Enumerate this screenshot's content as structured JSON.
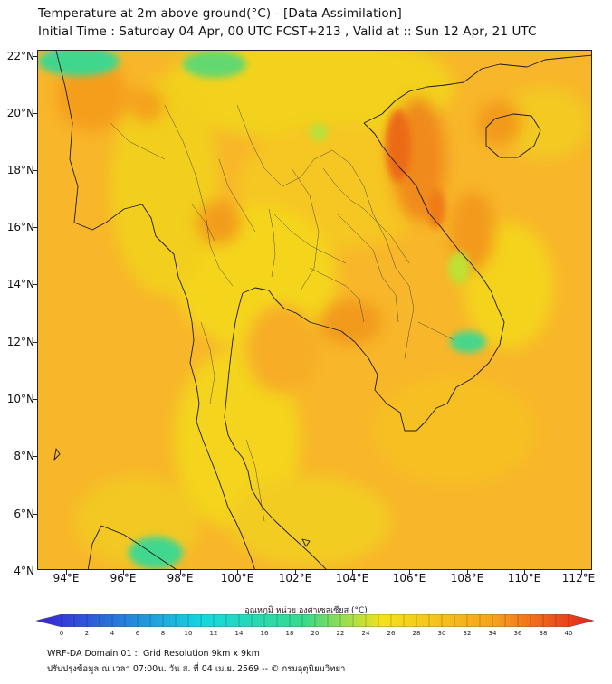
{
  "title": {
    "line1": "Temperature at 2m above ground(°C) - [Data Assimilation]",
    "line2": "Initial Time : Saturday 04 Apr, 00 UTC FCST+213 , Valid at :: Sun 12 Apr, 21 UTC"
  },
  "axes": {
    "lat_labels": [
      "22°N",
      "20°N",
      "18°N",
      "16°N",
      "14°N",
      "12°N",
      "10°N",
      "8°N",
      "6°N",
      "4°N"
    ],
    "lon_labels": [
      "94°E",
      "96°E",
      "98°E",
      "100°E",
      "102°E",
      "104°E",
      "106°E",
      "108°E",
      "110°E",
      "112°E"
    ]
  },
  "colorbar": {
    "title": "อุณหภูมิ หน่วย องศาเซลเซียส (°C)",
    "ticks": [
      "0",
      "2",
      "4",
      "6",
      "8",
      "10",
      "12",
      "14",
      "16",
      "18",
      "20",
      "22",
      "24",
      "26",
      "28",
      "30",
      "32",
      "34",
      "36",
      "38",
      "40"
    ],
    "colors": {
      "cold": "#3a1fd6",
      "cyan": "#14d8e0",
      "green": "#39d98a",
      "yellow": "#f4e21a",
      "orange": "#f6a21c",
      "red": "#e6201c"
    }
  },
  "footer": {
    "line1": "WRF-DA Domain 01 :: Grid Resolution 9km x 9km",
    "line2": "ปรับปรุงข้อมูล ณ เวลา 07:00น. วัน ส. ที่ 04 เม.ย. 2569 -- © กรมอุตุนิยมวิทยา"
  }
}
